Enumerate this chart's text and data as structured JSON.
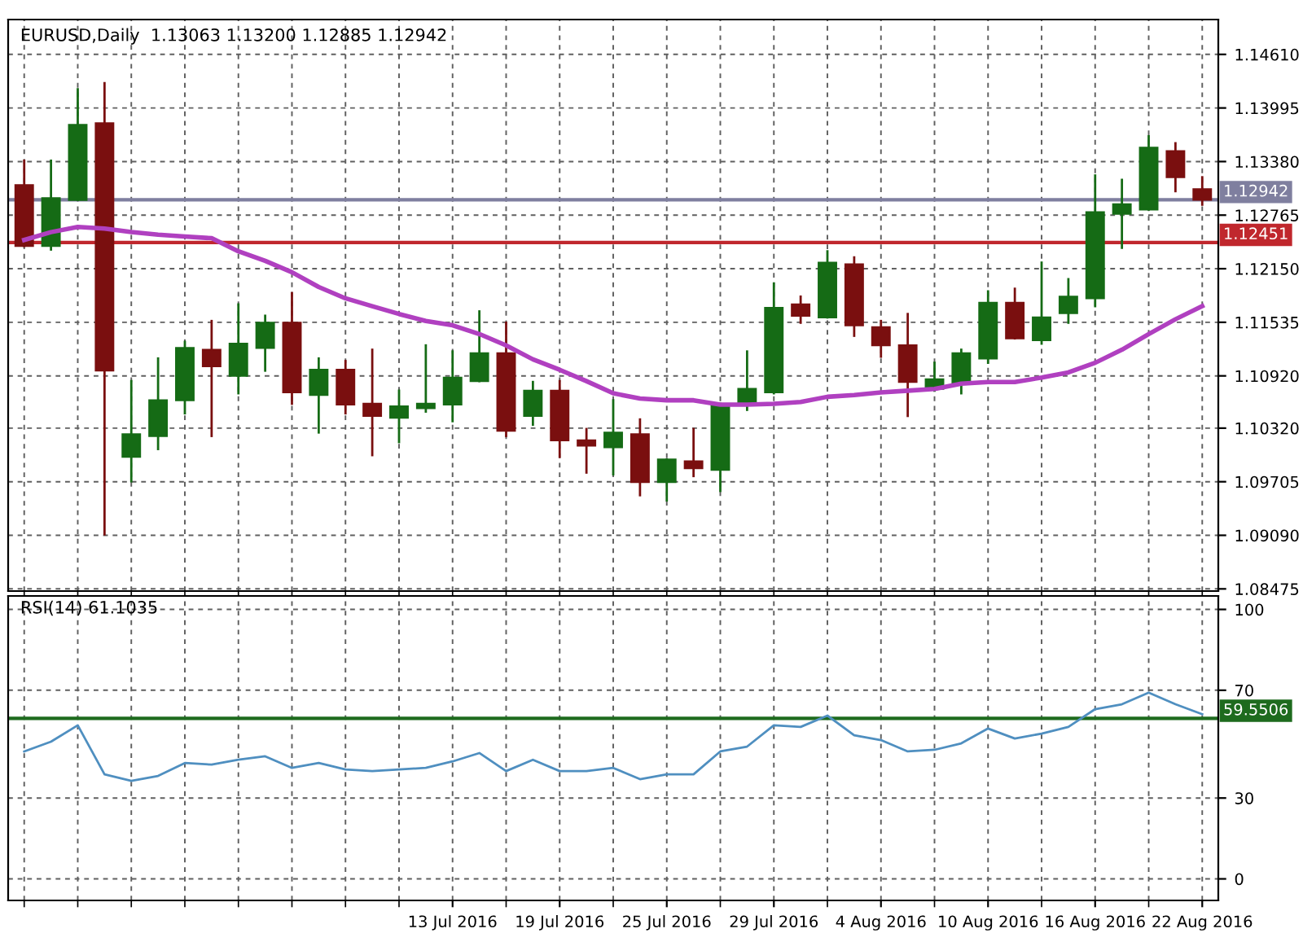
{
  "chart_data": [
    {
      "type": "candlestick",
      "title": "EURUSD,Daily  1.13063 1.13200 1.12885 1.12942",
      "categories": [
        null,
        null,
        null,
        null,
        null,
        null,
        null,
        null,
        null,
        null,
        null,
        null,
        null,
        null,
        null,
        null,
        null,
        null,
        null,
        null,
        null,
        null,
        null,
        null,
        null,
        null,
        null,
        null,
        null,
        null,
        null,
        null,
        null,
        null,
        null,
        null,
        null,
        null,
        null,
        null,
        null,
        null,
        null,
        null,
        null
      ],
      "ohlc": [
        [
          1.1311,
          1.1339,
          1.1241,
          1.1241
        ],
        [
          1.1241,
          1.1339,
          1.1237,
          1.1296
        ],
        [
          1.1294,
          1.1421,
          1.1294,
          1.138
        ],
        [
          1.1382,
          1.1428,
          1.091,
          1.1098
        ],
        [
          1.0999,
          1.1086,
          1.0971,
          1.1025
        ],
        [
          1.1023,
          1.1112,
          1.1008,
          1.1064
        ],
        [
          1.1064,
          1.1131,
          1.1049,
          1.1124
        ],
        [
          1.1122,
          1.1155,
          1.1023,
          1.1103
        ],
        [
          1.1092,
          1.1174,
          1.1072,
          1.1129
        ],
        [
          1.1124,
          1.1161,
          1.1098,
          1.1153
        ],
        [
          1.1153,
          1.1187,
          1.106,
          1.1073
        ],
        [
          1.107,
          1.1112,
          1.1027,
          1.1099
        ],
        [
          1.1099,
          1.1109,
          1.1049,
          1.1059
        ],
        [
          1.106,
          1.1122,
          1.1001,
          1.1046
        ],
        [
          1.1044,
          1.1075,
          1.1016,
          1.1057
        ],
        [
          1.1055,
          1.1127,
          1.1051,
          1.106
        ],
        [
          1.1059,
          1.112,
          1.104,
          1.109
        ],
        [
          1.1086,
          1.1166,
          1.1086,
          1.1118
        ],
        [
          1.1118,
          1.1153,
          1.1023,
          1.1029
        ],
        [
          1.1046,
          1.1085,
          1.1036,
          1.1075
        ],
        [
          1.1075,
          1.1086,
          1.0999,
          1.1018
        ],
        [
          1.1018,
          1.1031,
          1.0981,
          1.1012
        ],
        [
          1.101,
          1.1064,
          1.0979,
          1.1027
        ],
        [
          1.1025,
          1.1042,
          1.0955,
          1.097
        ],
        [
          1.097,
          1.0996,
          1.0949,
          1.0996
        ],
        [
          1.0994,
          1.1031,
          1.0977,
          1.0986
        ],
        [
          1.0984,
          1.106,
          1.096,
          1.1059
        ],
        [
          1.1062,
          1.112,
          1.1053,
          1.1077
        ],
        [
          1.1073,
          1.1198,
          1.1072,
          1.117
        ],
        [
          1.1174,
          1.1183,
          1.1153,
          1.1161
        ],
        [
          1.1159,
          1.1235,
          1.1159,
          1.1222
        ],
        [
          1.122,
          1.1228,
          1.1138,
          1.115
        ],
        [
          1.1148,
          1.1155,
          1.1114,
          1.1127
        ],
        [
          1.1127,
          1.1163,
          1.1046,
          1.1085
        ],
        [
          1.1077,
          1.1107,
          1.1075,
          1.1088
        ],
        [
          1.1083,
          1.1122,
          1.1072,
          1.1118
        ],
        [
          1.1112,
          1.1189,
          1.1107,
          1.1176
        ],
        [
          1.1176,
          1.1192,
          1.1135,
          1.1135
        ],
        [
          1.1133,
          1.1222,
          1.1129,
          1.1159
        ],
        [
          1.1164,
          1.1203,
          1.1153,
          1.1183
        ],
        [
          1.1181,
          1.1322,
          1.1172,
          1.128
        ],
        [
          1.1278,
          1.1317,
          1.1239,
          1.1289
        ],
        [
          1.1283,
          1.1367,
          1.1283,
          1.1354
        ],
        [
          1.135,
          1.1359,
          1.1304,
          1.132
        ],
        [
          1.13063,
          1.132,
          1.12885,
          1.12942
        ]
      ],
      "colors": [
        "#7a0f0f",
        "#156b15",
        "#156b15",
        "#7a0f0f",
        "#156b15",
        "#156b15",
        "#156b15",
        "#7a0f0f",
        "#156b15",
        "#156b15",
        "#7a0f0f",
        "#156b15",
        "#7a0f0f",
        "#7a0f0f",
        "#156b15",
        "#156b15",
        "#156b15",
        "#156b15",
        "#7a0f0f",
        "#156b15",
        "#7a0f0f",
        "#7a0f0f",
        "#156b15",
        "#7a0f0f",
        "#156b15",
        "#7a0f0f",
        "#156b15",
        "#156b15",
        "#156b15",
        "#7a0f0f",
        "#156b15",
        "#7a0f0f",
        "#7a0f0f",
        "#7a0f0f",
        "#156b15",
        "#156b15",
        "#156b15",
        "#7a0f0f",
        "#156b15",
        "#156b15",
        "#156b15",
        "#156b15",
        "#156b15",
        "#7a0f0f",
        "#7a0f0f"
      ],
      "series": [
        {
          "type": "line",
          "color": "#b040c0",
          "values": [
            1.1248,
            1.1257,
            1.1263,
            1.1261,
            1.1257,
            1.1254,
            1.1252,
            1.125,
            1.1235,
            1.1224,
            1.1211,
            1.1194,
            1.1181,
            1.1172,
            1.1163,
            1.1155,
            1.115,
            1.114,
            1.1127,
            1.1111,
            1.1099,
            1.1086,
            1.1072,
            1.1066,
            1.1064,
            1.1064,
            1.1059,
            1.1059,
            1.106,
            1.1062,
            1.1068,
            1.107,
            1.1073,
            1.1075,
            1.1077,
            1.1083,
            1.1085,
            1.1085,
            1.109,
            1.1096,
            1.1107,
            1.1122,
            1.114,
            1.1157,
            1.1172
          ]
        }
      ],
      "ylim": [
        1.0845,
        1.1501
      ],
      "yticks": [
        {
          "value": 1.1461,
          "label": "1.14610"
        },
        1.13995,
        {
          "value": 1.1338,
          "label": "1.13380"
        },
        1.12765,
        {
          "value": 1.1215,
          "label": "1.12150"
        },
        1.11535,
        {
          "value": 1.1092,
          "label": "1.10920"
        },
        {
          "value": 1.1032,
          "label": "1.10320"
        },
        1.09705,
        {
          "value": 1.0909,
          "label": "1.09090"
        },
        1.08475
      ],
      "ref_lines": [
        {
          "axis": "y",
          "value": 1.12942,
          "label": "1.12942",
          "color": "#7f7f9f"
        },
        {
          "axis": "y",
          "value": 1.12451,
          "label": "1.12451",
          "color": "#c0272d"
        }
      ],
      "grid": true,
      "tick_labels": "y"
    },
    {
      "type": "line",
      "title": "RSI(14) 61.1035",
      "categories": [
        null,
        null,
        null,
        null,
        null,
        null,
        null,
        null,
        null,
        null,
        null,
        null,
        null,
        null,
        null,
        null,
        "13 Jul 2016",
        null,
        null,
        null,
        "19 Jul 2016",
        null,
        null,
        null,
        "25 Jul 2016",
        null,
        null,
        null,
        "29 Jul 2016",
        null,
        null,
        null,
        "4 Aug 2016",
        null,
        null,
        null,
        "10 Aug 2016",
        null,
        null,
        null,
        "16 Aug 2016",
        null,
        null,
        null,
        "22 Aug 2016"
      ],
      "series": [
        {
          "color": "#4f8fc0",
          "values": [
            47.3,
            50.9,
            57.0,
            38.8,
            36.4,
            38.2,
            43.0,
            42.4,
            44.2,
            45.5,
            41.2,
            43.0,
            40.6,
            40.0,
            40.6,
            41.2,
            43.6,
            46.7,
            40.0,
            44.2,
            40.0,
            40.0,
            41.2,
            37.0,
            38.8,
            38.8,
            47.3,
            49.1,
            57.0,
            56.4,
            60.6,
            53.3,
            51.5,
            47.3,
            47.9,
            50.3,
            55.8,
            52.1,
            53.9,
            56.4,
            63.0,
            64.8,
            69.1,
            64.8,
            61.1
          ]
        }
      ],
      "ylim": [
        -8,
        105
      ],
      "yticks": [
        0,
        30,
        70,
        100
      ],
      "ref_lines": [
        {
          "axis": "y",
          "value": 59.5506,
          "label": "59.5506",
          "color": "#1e6b1e"
        }
      ],
      "grid": true
    }
  ]
}
